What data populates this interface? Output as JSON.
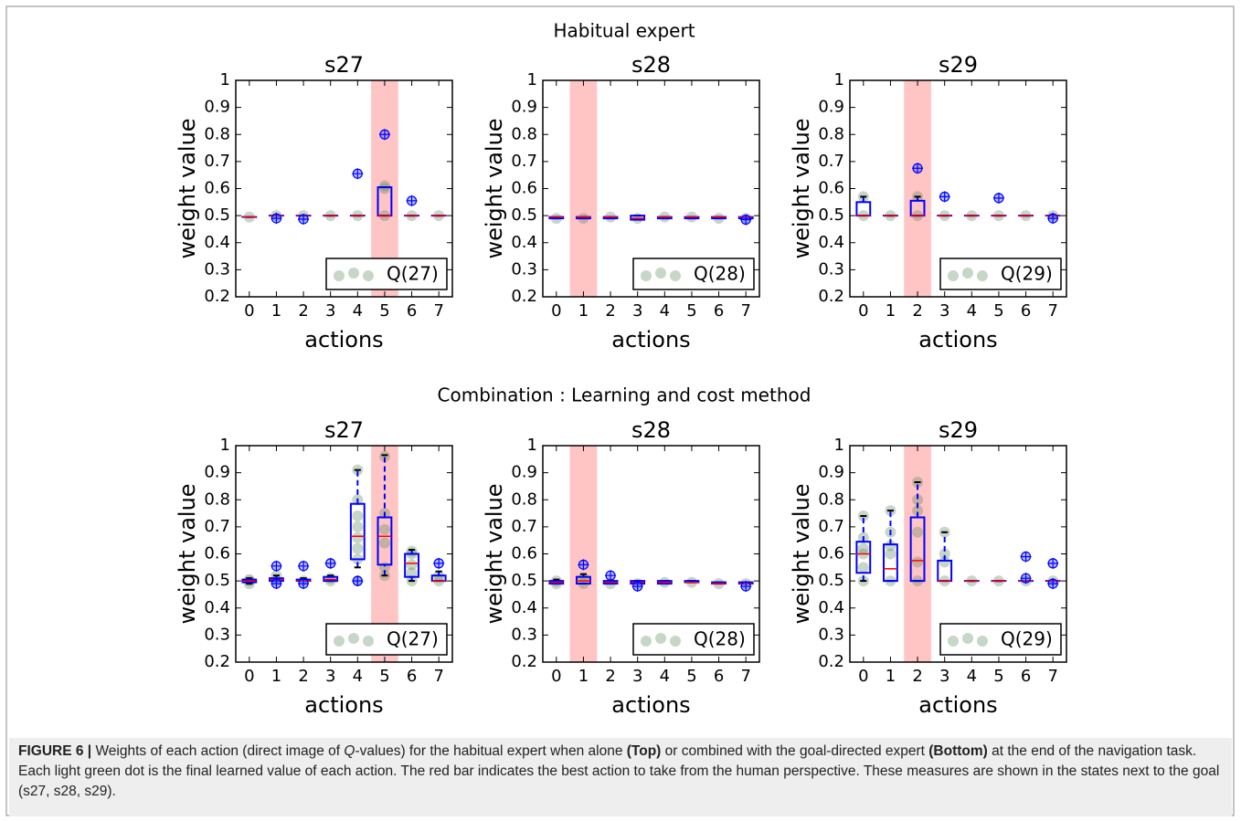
{
  "figure": {
    "row_titles": [
      "Habitual expert",
      "Combination : Learning and cost method"
    ],
    "caption": [
      {
        "text": "FIGURE 6 |",
        "style": "bold"
      },
      {
        "text": " Weights of each action (direct image of "
      },
      {
        "text": "Q",
        "style": "italic"
      },
      {
        "text": "-values) for the habitual expert when alone "
      },
      {
        "text": "(Top)",
        "style": "bold"
      },
      {
        "text": " or combined with the goal-directed expert "
      },
      {
        "text": "(Bottom)",
        "style": "bold"
      },
      {
        "text": " at the end of the navigation task. Each light green dot is the final learned value of each action. The red bar indicates the best action to take from the human perspective. These measures are shown in the states next to the goal (s27, s28, s29)."
      }
    ]
  },
  "chart_data": [
    {
      "type": "box",
      "title": "s27",
      "xlabel": "actions",
      "ylabel": "weight value",
      "categories": [
        "0",
        "1",
        "2",
        "3",
        "4",
        "5",
        "6",
        "7"
      ],
      "highlight": "5",
      "legend": "Q(27)",
      "legend_corner": "lower right",
      "ylim": [
        0.2,
        1.0
      ],
      "yticks": [
        0.2,
        0.3,
        0.4,
        0.5,
        0.6,
        0.7,
        0.8,
        0.9,
        1.0
      ],
      "box_color": "#0000ff",
      "median_color": "#ff0000",
      "point_color": "#5f8a5f",
      "highlight_color": "#ffc4c4",
      "boxes": [
        {
          "whislo": 0.495,
          "q1": 0.495,
          "med": 0.495,
          "q3": 0.495,
          "whishi": 0.495,
          "fliers": [],
          "points": [
            0.495
          ]
        },
        {
          "whislo": 0.5,
          "q1": 0.5,
          "med": 0.5,
          "q3": 0.5,
          "whishi": 0.5,
          "fliers": [
            0.49
          ],
          "points": [
            0.5
          ]
        },
        {
          "whislo": 0.5,
          "q1": 0.5,
          "med": 0.5,
          "q3": 0.5,
          "whishi": 0.5,
          "fliers": [
            0.487
          ],
          "points": [
            0.5
          ]
        },
        {
          "whislo": 0.5,
          "q1": 0.5,
          "med": 0.5,
          "q3": 0.5,
          "whishi": 0.5,
          "fliers": [],
          "points": [
            0.5
          ]
        },
        {
          "whislo": 0.5,
          "q1": 0.5,
          "med": 0.5,
          "q3": 0.5,
          "whishi": 0.5,
          "fliers": [
            0.655
          ],
          "points": [
            0.5
          ]
        },
        {
          "whislo": 0.5,
          "q1": 0.5,
          "med": 0.5,
          "q3": 0.605,
          "whishi": 0.605,
          "fliers": [
            0.8
          ],
          "points": [
            0.5,
            0.6,
            0.61
          ]
        },
        {
          "whislo": 0.5,
          "q1": 0.5,
          "med": 0.5,
          "q3": 0.5,
          "whishi": 0.5,
          "fliers": [
            0.555
          ],
          "points": [
            0.5
          ]
        },
        {
          "whislo": 0.5,
          "q1": 0.5,
          "med": 0.5,
          "q3": 0.5,
          "whishi": 0.5,
          "fliers": [],
          "points": [
            0.5
          ]
        }
      ]
    },
    {
      "type": "box",
      "title": "s28",
      "xlabel": "actions",
      "ylabel": "weight value",
      "categories": [
        "0",
        "1",
        "2",
        "3",
        "4",
        "5",
        "6",
        "7"
      ],
      "highlight": "1",
      "legend": "Q(28)",
      "legend_corner": "lower right",
      "ylim": [
        0.2,
        1.0
      ],
      "yticks": [
        0.2,
        0.3,
        0.4,
        0.5,
        0.6,
        0.7,
        0.8,
        0.9,
        1.0
      ],
      "box_color": "#0000ff",
      "median_color": "#ff0000",
      "point_color": "#5f8a5f",
      "highlight_color": "#ffc4c4",
      "boxes": [
        {
          "whislo": 0.49,
          "q1": 0.49,
          "med": 0.495,
          "q3": 0.495,
          "whishi": 0.495,
          "fliers": [],
          "points": [
            0.49
          ]
        },
        {
          "whislo": 0.49,
          "q1": 0.49,
          "med": 0.495,
          "q3": 0.495,
          "whishi": 0.495,
          "fliers": [],
          "points": [
            0.49
          ]
        },
        {
          "whislo": 0.49,
          "q1": 0.49,
          "med": 0.495,
          "q3": 0.495,
          "whishi": 0.495,
          "fliers": [],
          "points": [
            0.495
          ]
        },
        {
          "whislo": 0.485,
          "q1": 0.485,
          "med": 0.49,
          "q3": 0.5,
          "whishi": 0.5,
          "fliers": [],
          "points": [
            0.49
          ]
        },
        {
          "whislo": 0.49,
          "q1": 0.49,
          "med": 0.495,
          "q3": 0.495,
          "whishi": 0.495,
          "fliers": [],
          "points": [
            0.495
          ]
        },
        {
          "whislo": 0.49,
          "q1": 0.49,
          "med": 0.495,
          "q3": 0.495,
          "whishi": 0.495,
          "fliers": [],
          "points": [
            0.495
          ]
        },
        {
          "whislo": 0.49,
          "q1": 0.49,
          "med": 0.495,
          "q3": 0.495,
          "whishi": 0.495,
          "fliers": [],
          "points": [
            0.49
          ]
        },
        {
          "whislo": 0.49,
          "q1": 0.49,
          "med": 0.495,
          "q3": 0.495,
          "whishi": 0.495,
          "fliers": [
            0.485
          ],
          "points": [
            0.49
          ]
        }
      ]
    },
    {
      "type": "box",
      "title": "s29",
      "xlabel": "actions",
      "ylabel": "weight value",
      "categories": [
        "0",
        "1",
        "2",
        "3",
        "4",
        "5",
        "6",
        "7"
      ],
      "highlight": "2",
      "legend": "Q(29)",
      "legend_corner": "lower right",
      "ylim": [
        0.2,
        1.0
      ],
      "yticks": [
        0.2,
        0.3,
        0.4,
        0.5,
        0.6,
        0.7,
        0.8,
        0.9,
        1.0
      ],
      "box_color": "#0000ff",
      "median_color": "#ff0000",
      "point_color": "#5f8a5f",
      "highlight_color": "#ffc4c4",
      "boxes": [
        {
          "whislo": 0.5,
          "q1": 0.5,
          "med": 0.5,
          "q3": 0.55,
          "whishi": 0.57,
          "fliers": [],
          "points": [
            0.5,
            0.57
          ]
        },
        {
          "whislo": 0.5,
          "q1": 0.5,
          "med": 0.5,
          "q3": 0.5,
          "whishi": 0.5,
          "fliers": [],
          "points": [
            0.5
          ]
        },
        {
          "whislo": 0.5,
          "q1": 0.5,
          "med": 0.5,
          "q3": 0.555,
          "whishi": 0.57,
          "fliers": [
            0.675
          ],
          "points": [
            0.5,
            0.57
          ]
        },
        {
          "whislo": 0.5,
          "q1": 0.5,
          "med": 0.5,
          "q3": 0.5,
          "whishi": 0.5,
          "fliers": [
            0.57
          ],
          "points": [
            0.5
          ]
        },
        {
          "whislo": 0.5,
          "q1": 0.5,
          "med": 0.5,
          "q3": 0.5,
          "whishi": 0.5,
          "fliers": [],
          "points": [
            0.5
          ]
        },
        {
          "whislo": 0.5,
          "q1": 0.5,
          "med": 0.5,
          "q3": 0.5,
          "whishi": 0.5,
          "fliers": [
            0.565
          ],
          "points": [
            0.5
          ]
        },
        {
          "whislo": 0.5,
          "q1": 0.5,
          "med": 0.5,
          "q3": 0.5,
          "whishi": 0.5,
          "fliers": [],
          "points": [
            0.5
          ]
        },
        {
          "whislo": 0.5,
          "q1": 0.5,
          "med": 0.5,
          "q3": 0.5,
          "whishi": 0.5,
          "fliers": [
            0.49
          ],
          "points": [
            0.5
          ]
        }
      ]
    },
    {
      "type": "box",
      "title": "s27",
      "xlabel": "actions",
      "ylabel": "weight value",
      "categories": [
        "0",
        "1",
        "2",
        "3",
        "4",
        "5",
        "6",
        "7"
      ],
      "highlight": "5",
      "legend": "Q(27)",
      "legend_corner": "lower right",
      "ylim": [
        0.2,
        1.0
      ],
      "yticks": [
        0.2,
        0.3,
        0.4,
        0.5,
        0.6,
        0.7,
        0.8,
        0.9,
        1.0
      ],
      "box_color": "#0000ff",
      "median_color": "#ff0000",
      "point_color": "#5f8a5f",
      "highlight_color": "#ffc4c4",
      "boxes": [
        {
          "whislo": 0.49,
          "q1": 0.495,
          "med": 0.5,
          "q3": 0.505,
          "whishi": 0.51,
          "fliers": [],
          "points": [
            0.49,
            0.5,
            0.505
          ]
        },
        {
          "whislo": 0.5,
          "q1": 0.5,
          "med": 0.505,
          "q3": 0.51,
          "whishi": 0.52,
          "fliers": [
            0.555,
            0.49
          ],
          "points": [
            0.5,
            0.52
          ]
        },
        {
          "whislo": 0.5,
          "q1": 0.5,
          "med": 0.5,
          "q3": 0.505,
          "whishi": 0.51,
          "fliers": [
            0.555,
            0.49
          ],
          "points": [
            0.5
          ]
        },
        {
          "whislo": 0.5,
          "q1": 0.5,
          "med": 0.505,
          "q3": 0.515,
          "whishi": 0.52,
          "fliers": [
            0.565
          ],
          "points": [
            0.5,
            0.51
          ]
        },
        {
          "whislo": 0.55,
          "q1": 0.58,
          "med": 0.665,
          "q3": 0.785,
          "whishi": 0.91,
          "fliers": [
            0.5
          ],
          "points": [
            0.5,
            0.58,
            0.62,
            0.66,
            0.7,
            0.74,
            0.8,
            0.91
          ]
        },
        {
          "whislo": 0.52,
          "q1": 0.56,
          "med": 0.665,
          "q3": 0.735,
          "whishi": 0.965,
          "fliers": [],
          "points": [
            0.52,
            0.55,
            0.64,
            0.69,
            0.75,
            0.96
          ]
        },
        {
          "whislo": 0.5,
          "q1": 0.515,
          "med": 0.565,
          "q3": 0.6,
          "whishi": 0.615,
          "fliers": [],
          "points": [
            0.5,
            0.53,
            0.56,
            0.6,
            0.61
          ]
        },
        {
          "whislo": 0.5,
          "q1": 0.5,
          "med": 0.5,
          "q3": 0.52,
          "whishi": 0.535,
          "fliers": [
            0.565
          ],
          "points": [
            0.5,
            0.52
          ]
        }
      ]
    },
    {
      "type": "box",
      "title": "s28",
      "xlabel": "actions",
      "ylabel": "weight value",
      "categories": [
        "0",
        "1",
        "2",
        "3",
        "4",
        "5",
        "6",
        "7"
      ],
      "highlight": "1",
      "legend": "Q(28)",
      "legend_corner": "lower right",
      "ylim": [
        0.2,
        1.0
      ],
      "yticks": [
        0.2,
        0.3,
        0.4,
        0.5,
        0.6,
        0.7,
        0.8,
        0.9,
        1.0
      ],
      "box_color": "#0000ff",
      "median_color": "#ff0000",
      "point_color": "#5f8a5f",
      "highlight_color": "#ffc4c4",
      "boxes": [
        {
          "whislo": 0.49,
          "q1": 0.49,
          "med": 0.495,
          "q3": 0.5,
          "whishi": 0.505,
          "fliers": [],
          "points": [
            0.49,
            0.5
          ]
        },
        {
          "whislo": 0.49,
          "q1": 0.49,
          "med": 0.5,
          "q3": 0.515,
          "whishi": 0.525,
          "fliers": [
            0.56
          ],
          "points": [
            0.49,
            0.51
          ]
        },
        {
          "whislo": 0.49,
          "q1": 0.49,
          "med": 0.495,
          "q3": 0.5,
          "whishi": 0.5,
          "fliers": [
            0.52
          ],
          "points": [
            0.49
          ]
        },
        {
          "whislo": 0.49,
          "q1": 0.49,
          "med": 0.495,
          "q3": 0.5,
          "whishi": 0.5,
          "fliers": [
            0.48
          ],
          "points": [
            0.49
          ]
        },
        {
          "whislo": 0.49,
          "q1": 0.49,
          "med": 0.495,
          "q3": 0.5,
          "whishi": 0.5,
          "fliers": [],
          "points": [
            0.495
          ]
        },
        {
          "whislo": 0.495,
          "q1": 0.495,
          "med": 0.495,
          "q3": 0.5,
          "whishi": 0.5,
          "fliers": [],
          "points": [
            0.495
          ]
        },
        {
          "whislo": 0.49,
          "q1": 0.49,
          "med": 0.49,
          "q3": 0.495,
          "whishi": 0.495,
          "fliers": [],
          "points": [
            0.49
          ]
        },
        {
          "whislo": 0.49,
          "q1": 0.49,
          "med": 0.49,
          "q3": 0.495,
          "whishi": 0.495,
          "fliers": [
            0.48
          ],
          "points": [
            0.49
          ]
        }
      ]
    },
    {
      "type": "box",
      "title": "s29",
      "xlabel": "actions",
      "ylabel": "weight value",
      "categories": [
        "0",
        "1",
        "2",
        "3",
        "4",
        "5",
        "6",
        "7"
      ],
      "highlight": "2",
      "legend": "Q(29)",
      "legend_corner": "lower right",
      "ylim": [
        0.2,
        1.0
      ],
      "yticks": [
        0.2,
        0.3,
        0.4,
        0.5,
        0.6,
        0.7,
        0.8,
        0.9,
        1.0
      ],
      "box_color": "#0000ff",
      "median_color": "#ff0000",
      "point_color": "#5f8a5f",
      "highlight_color": "#ffc4c4",
      "boxes": [
        {
          "whislo": 0.5,
          "q1": 0.53,
          "med": 0.6,
          "q3": 0.645,
          "whishi": 0.74,
          "fliers": [],
          "points": [
            0.5,
            0.55,
            0.6,
            0.62,
            0.66,
            0.74
          ]
        },
        {
          "whislo": 0.5,
          "q1": 0.5,
          "med": 0.545,
          "q3": 0.635,
          "whishi": 0.76,
          "fliers": [],
          "points": [
            0.5,
            0.6,
            0.63,
            0.68,
            0.76
          ]
        },
        {
          "whislo": 0.5,
          "q1": 0.5,
          "med": 0.575,
          "q3": 0.735,
          "whishi": 0.865,
          "fliers": [],
          "points": [
            0.5,
            0.57,
            0.68,
            0.76,
            0.8,
            0.865
          ]
        },
        {
          "whislo": 0.5,
          "q1": 0.5,
          "med": 0.5,
          "q3": 0.575,
          "whishi": 0.68,
          "fliers": [],
          "points": [
            0.5,
            0.57,
            0.6,
            0.68
          ]
        },
        {
          "whislo": 0.5,
          "q1": 0.5,
          "med": 0.5,
          "q3": 0.5,
          "whishi": 0.5,
          "fliers": [],
          "points": [
            0.5
          ]
        },
        {
          "whislo": 0.5,
          "q1": 0.5,
          "med": 0.5,
          "q3": 0.5,
          "whishi": 0.5,
          "fliers": [],
          "points": [
            0.5
          ]
        },
        {
          "whislo": 0.5,
          "q1": 0.5,
          "med": 0.5,
          "q3": 0.5,
          "whishi": 0.5,
          "fliers": [
            0.59,
            0.51
          ],
          "points": [
            0.5
          ]
        },
        {
          "whislo": 0.5,
          "q1": 0.5,
          "med": 0.5,
          "q3": 0.5,
          "whishi": 0.5,
          "fliers": [
            0.565,
            0.49
          ],
          "points": [
            0.5
          ]
        }
      ]
    }
  ]
}
